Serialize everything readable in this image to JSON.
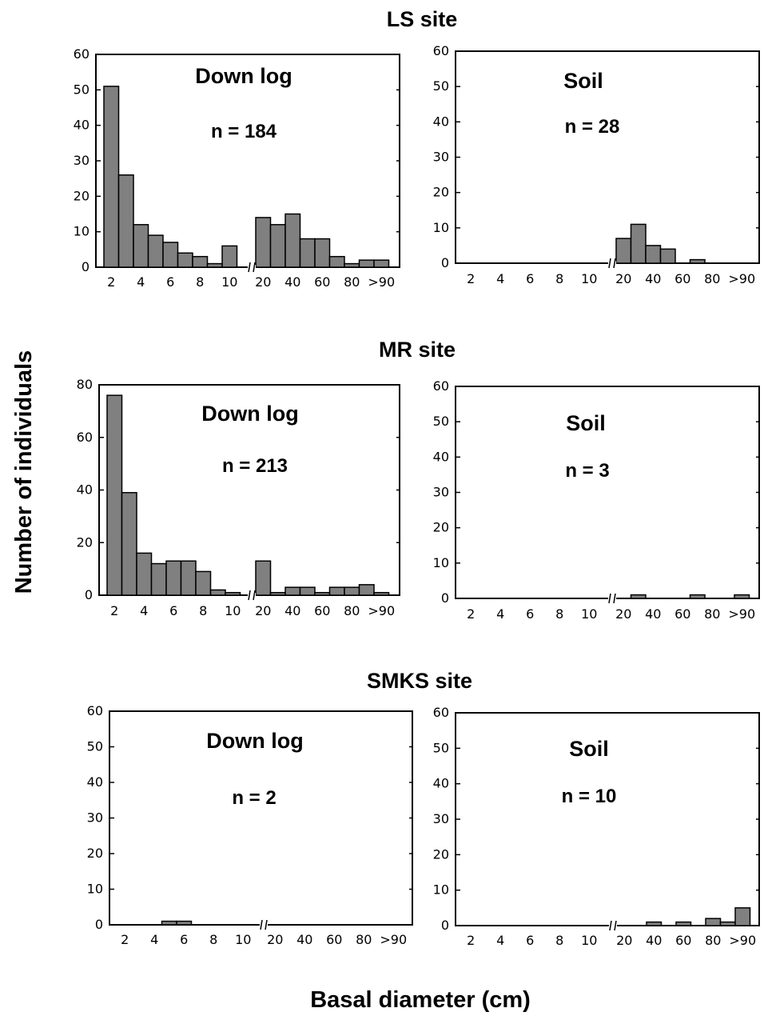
{
  "figure": {
    "ylabel": "Number of individuals",
    "xlabel": "Basal diameter (cm)",
    "sites": [
      "LS site",
      "MR site",
      "SMKS site"
    ]
  },
  "chart_data": [
    {
      "type": "bar",
      "site": "LS site",
      "title": "Down log",
      "n_label": "n = 184",
      "ylim": [
        0,
        60
      ],
      "yticks": [
        "0",
        "10",
        "20",
        "30",
        "40",
        "50",
        "60"
      ],
      "xtick_labels_left": [
        "2",
        "4",
        "6",
        "8",
        "10"
      ],
      "xtick_labels_right": [
        "20",
        "40",
        "60",
        "80",
        ">90"
      ],
      "bins_left": [
        51,
        26,
        12,
        9,
        7,
        4,
        3,
        1,
        6
      ],
      "bins_right": [
        14,
        12,
        15,
        8,
        8,
        3,
        1,
        2,
        2
      ],
      "bar_color": "#808080"
    },
    {
      "type": "bar",
      "site": "LS site",
      "title": "Soil",
      "n_label": "n = 28",
      "ylim": [
        0,
        60
      ],
      "yticks": [
        "0",
        "10",
        "20",
        "30",
        "40",
        "50",
        "60"
      ],
      "xtick_labels_left": [
        "2",
        "4",
        "6",
        "8",
        "10"
      ],
      "xtick_labels_right": [
        "20",
        "40",
        "60",
        "80",
        ">90"
      ],
      "bins_left": [
        0,
        0,
        0,
        0,
        0,
        0,
        0,
        0,
        0
      ],
      "bins_right": [
        7,
        11,
        5,
        4,
        0,
        1,
        0,
        0,
        0
      ],
      "bar_color": "#808080"
    },
    {
      "type": "bar",
      "site": "MR site",
      "title": "Down log",
      "n_label": "n = 213",
      "ylim": [
        0,
        80
      ],
      "yticks": [
        "0",
        "20",
        "40",
        "60",
        "80"
      ],
      "xtick_labels_left": [
        "2",
        "4",
        "6",
        "8",
        "10"
      ],
      "xtick_labels_right": [
        "20",
        "40",
        "60",
        "80",
        ">90"
      ],
      "bins_left": [
        76,
        39,
        16,
        12,
        13,
        13,
        9,
        2,
        1
      ],
      "bins_right": [
        13,
        1,
        3,
        3,
        1,
        3,
        3,
        4,
        1
      ],
      "bar_color": "#808080"
    },
    {
      "type": "bar",
      "site": "MR site",
      "title": "Soil",
      "n_label": "n = 3",
      "ylim": [
        0,
        60
      ],
      "yticks": [
        "0",
        "10",
        "20",
        "30",
        "40",
        "50",
        "60"
      ],
      "xtick_labels_left": [
        "2",
        "4",
        "6",
        "8",
        "10"
      ],
      "xtick_labels_right": [
        "20",
        "40",
        "60",
        "80",
        ">90"
      ],
      "bins_left": [
        0,
        0,
        0,
        0,
        0,
        0,
        0,
        0,
        0
      ],
      "bins_right": [
        0,
        1,
        0,
        0,
        0,
        1,
        0,
        0,
        1
      ],
      "bar_color": "#808080"
    },
    {
      "type": "bar",
      "site": "SMKS site",
      "title": "Down log",
      "n_label": "n = 2",
      "ylim": [
        0,
        60
      ],
      "yticks": [
        "0",
        "10",
        "20",
        "30",
        "40",
        "50",
        "60"
      ],
      "xtick_labels_left": [
        "2",
        "4",
        "6",
        "8",
        "10"
      ],
      "xtick_labels_right": [
        "20",
        "40",
        "60",
        "80",
        ">90"
      ],
      "bins_left": [
        0,
        0,
        0,
        1,
        1,
        0,
        0,
        0,
        0
      ],
      "bins_right": [
        0,
        0,
        0,
        0,
        0,
        0,
        0,
        0,
        0
      ],
      "bar_color": "#808080"
    },
    {
      "type": "bar",
      "site": "SMKS site",
      "title": "Soil",
      "n_label": "n = 10",
      "ylim": [
        0,
        60
      ],
      "yticks": [
        "0",
        "10",
        "20",
        "30",
        "40",
        "50",
        "60"
      ],
      "xtick_labels_left": [
        "2",
        "4",
        "6",
        "8",
        "10"
      ],
      "xtick_labels_right": [
        "20",
        "40",
        "60",
        "80",
        ">90"
      ],
      "bins_left": [
        0,
        0,
        0,
        0,
        0,
        0,
        0,
        0,
        0
      ],
      "bins_right": [
        0,
        0,
        1,
        0,
        1,
        0,
        2,
        1,
        5
      ],
      "bar_color": "#808080"
    }
  ]
}
